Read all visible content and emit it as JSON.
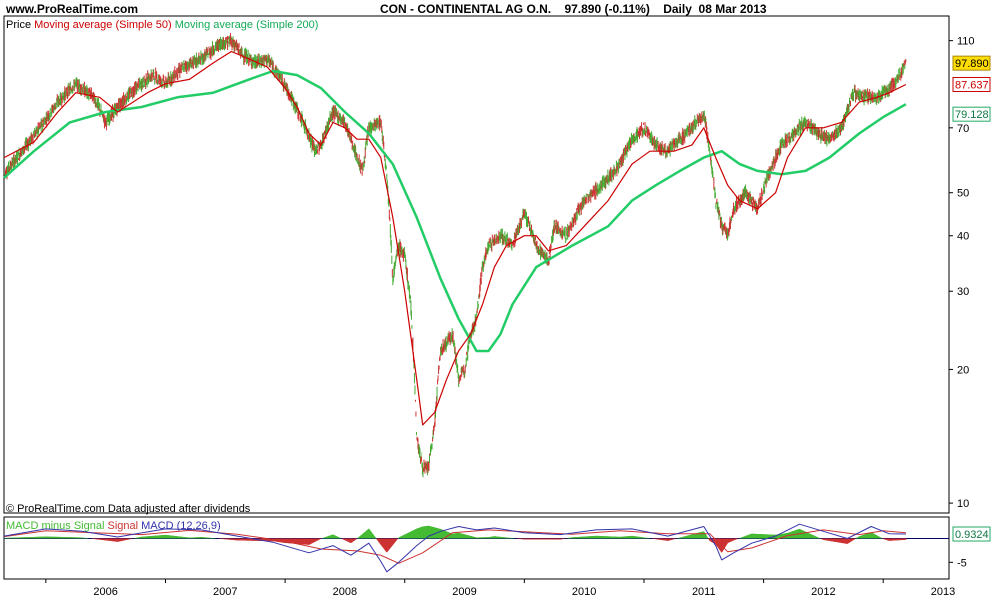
{
  "header": {
    "site": "www.ProRealTime.com",
    "instrument": "CON - CONTINENTAL AG O.N.",
    "price_change": "97.890 (-0.11%)",
    "period": "Daily",
    "date": "08 Mar 2013"
  },
  "legend": {
    "price_label": "Price",
    "ma50_label": "Moving average (Simple 50)",
    "ma200_label": "Moving average (Simple 200)"
  },
  "credit": "© ProRealTime.com  Data adjusted after dividends",
  "macd_legend": {
    "hist_label": "MACD minus Signal",
    "signal_label": "Signal",
    "macd_label": "MACD",
    "params": "(12,26,9)"
  },
  "colors": {
    "ma50": "#cc0000",
    "ma200": "#22cc66",
    "candle_up": "#44aa33",
    "candle_down": "#cc3333",
    "macd_line": "#3333aa",
    "macd_signal": "#cc3333",
    "macd_hist_pos": "#44bb33",
    "macd_hist_neg": "#cc3333"
  },
  "chart_data": {
    "type": "line",
    "scale": "log",
    "x_labels": [
      "2006",
      "2007",
      "2008",
      "2009",
      "2010",
      "2011",
      "2012",
      "2013"
    ],
    "y_ticks": [
      10,
      20,
      30,
      40,
      50,
      70,
      110
    ],
    "ylim": [
      9.5,
      125
    ],
    "badges": {
      "last": "97.890",
      "ma50": "87.637",
      "ma200": "79.128",
      "macd": "0.9324"
    },
    "macd_ticks": [
      -5
    ],
    "price": {
      "x": [
        2005.65,
        2005.8,
        2005.95,
        2006.1,
        2006.25,
        2006.4,
        2006.5,
        2006.6,
        2006.75,
        2006.9,
        2007.0,
        2007.15,
        2007.3,
        2007.45,
        2007.55,
        2007.65,
        2007.75,
        2007.85,
        2007.95,
        2008.05,
        2008.15,
        2008.25,
        2008.3,
        2008.4,
        2008.5,
        2008.6,
        2008.65,
        2008.7,
        2008.8,
        2008.85,
        2008.9,
        2008.95,
        2009.0,
        2009.05,
        2009.1,
        2009.15,
        2009.2,
        2009.25,
        2009.3,
        2009.4,
        2009.45,
        2009.5,
        2009.55,
        2009.6,
        2009.65,
        2009.7,
        2009.8,
        2009.9,
        2010.0,
        2010.1,
        2010.2,
        2010.25,
        2010.35,
        2010.5,
        2010.65,
        2010.8,
        2010.9,
        2011.0,
        2011.1,
        2011.2,
        2011.3,
        2011.4,
        2011.5,
        2011.55,
        2011.6,
        2011.65,
        2011.7,
        2011.75,
        2011.85,
        2011.95,
        2012.05,
        2012.15,
        2012.25,
        2012.35,
        2012.45,
        2012.55,
        2012.65,
        2012.75,
        2012.85,
        2012.95,
        2013.05,
        2013.12,
        2013.19
      ],
      "y": [
        55,
        62,
        70,
        80,
        88,
        82,
        72,
        78,
        86,
        92,
        88,
        96,
        100,
        108,
        110,
        102,
        98,
        100,
        92,
        82,
        72,
        62,
        64,
        76,
        72,
        60,
        56,
        70,
        72,
        55,
        32,
        38,
        36,
        28,
        14,
        12,
        12,
        15,
        22,
        24,
        19,
        20,
        24,
        26,
        34,
        38,
        40,
        38,
        45,
        38,
        35,
        42,
        40,
        48,
        52,
        58,
        66,
        70,
        64,
        62,
        66,
        70,
        75,
        62,
        48,
        42,
        40,
        46,
        50,
        46,
        56,
        64,
        68,
        72,
        68,
        66,
        70,
        84,
        82,
        82,
        86,
        90,
        97.89
      ]
    },
    "ma50": {
      "x": [
        2005.65,
        2005.9,
        2006.1,
        2006.25,
        2006.45,
        2006.6,
        2006.85,
        2007.0,
        2007.2,
        2007.4,
        2007.55,
        2007.7,
        2007.85,
        2008.0,
        2008.1,
        2008.2,
        2008.3,
        2008.4,
        2008.5,
        2008.6,
        2008.7,
        2008.8,
        2008.9,
        2009.0,
        2009.1,
        2009.15,
        2009.25,
        2009.35,
        2009.45,
        2009.55,
        2009.65,
        2009.75,
        2009.85,
        2010.0,
        2010.1,
        2010.2,
        2010.35,
        2010.5,
        2010.7,
        2010.9,
        2011.05,
        2011.25,
        2011.4,
        2011.5,
        2011.6,
        2011.7,
        2011.8,
        2011.95,
        2012.1,
        2012.2,
        2012.35,
        2012.5,
        2012.65,
        2012.8,
        2012.95,
        2013.05,
        2013.19
      ],
      "y": [
        60,
        65,
        76,
        84,
        82,
        76,
        84,
        88,
        90,
        98,
        104,
        100,
        96,
        86,
        78,
        68,
        64,
        72,
        70,
        66,
        66,
        60,
        44,
        30,
        19,
        15,
        16,
        19,
        22,
        24,
        28,
        34,
        38,
        40,
        40,
        37,
        38,
        42,
        48,
        58,
        62,
        62,
        64,
        70,
        60,
        52,
        48,
        46,
        50,
        60,
        70,
        70,
        72,
        80,
        82,
        84,
        87.637
      ]
    },
    "ma200": {
      "x": [
        2005.65,
        2005.9,
        2006.2,
        2006.5,
        2006.8,
        2007.1,
        2007.4,
        2007.7,
        2007.9,
        2008.1,
        2008.3,
        2008.5,
        2008.7,
        2008.9,
        2009.1,
        2009.3,
        2009.45,
        2009.6,
        2009.7,
        2009.8,
        2009.9,
        2010.1,
        2010.4,
        2010.7,
        2010.9,
        2011.1,
        2011.3,
        2011.5,
        2011.65,
        2011.8,
        2011.95,
        2012.15,
        2012.35,
        2012.55,
        2012.8,
        2013.0,
        2013.19
      ],
      "y": [
        54,
        62,
        72,
        76,
        78,
        82,
        84,
        90,
        94,
        92,
        86,
        76,
        68,
        58,
        44,
        32,
        26,
        22,
        22,
        24,
        28,
        34,
        38,
        42,
        48,
        52,
        56,
        60,
        62,
        58,
        56,
        55,
        56,
        60,
        68,
        74,
        79.128
      ]
    },
    "macd": {
      "x": [
        2005.65,
        2006.0,
        2006.3,
        2006.6,
        2007.0,
        2007.3,
        2007.6,
        2007.9,
        2008.2,
        2008.4,
        2008.55,
        2008.7,
        2008.8,
        2008.85,
        2008.95,
        2009.1,
        2009.2,
        2009.3,
        2009.45,
        2009.6,
        2009.75,
        2010.0,
        2010.3,
        2010.6,
        2010.9,
        2011.2,
        2011.5,
        2011.6,
        2011.65,
        2011.75,
        2011.9,
        2012.1,
        2012.3,
        2012.5,
        2012.7,
        2012.9,
        2013.05,
        2013.19
      ],
      "y": [
        0.5,
        2.0,
        1.5,
        0.3,
        2.0,
        1.8,
        0.5,
        -0.8,
        -3.0,
        -1.5,
        -3.5,
        -1.0,
        -4.8,
        -7.0,
        -5.0,
        -1.5,
        0.5,
        1.5,
        2.5,
        1.8,
        2.2,
        1.2,
        0.8,
        1.8,
        2.0,
        0.5,
        2.5,
        -1.5,
        -4.5,
        -3.0,
        -1.0,
        0.5,
        3.0,
        1.5,
        0.0,
        2.5,
        1.0,
        0.9324
      ]
    },
    "macd_signal": {
      "x": [
        2005.65,
        2006.0,
        2006.4,
        2006.8,
        2007.2,
        2007.6,
        2008.0,
        2008.3,
        2008.6,
        2008.8,
        2008.95,
        2009.15,
        2009.4,
        2009.7,
        2010.0,
        2010.4,
        2010.8,
        2011.2,
        2011.55,
        2011.7,
        2011.9,
        2012.2,
        2012.5,
        2012.8,
        2013.0,
        2013.19
      ],
      "y": [
        0.4,
        1.6,
        1.2,
        0.8,
        1.7,
        0.9,
        -0.6,
        -2.2,
        -2.6,
        -3.5,
        -5.2,
        -3.0,
        1.2,
        1.8,
        1.4,
        0.9,
        1.6,
        1.0,
        1.0,
        -2.8,
        -2.0,
        0.6,
        1.8,
        0.8,
        1.6,
        1.2
      ]
    }
  }
}
